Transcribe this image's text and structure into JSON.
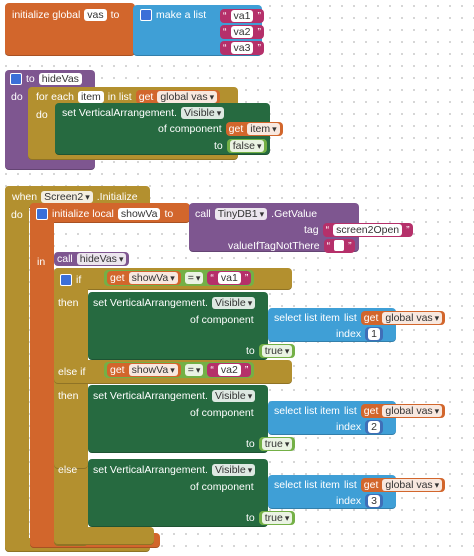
{
  "glyphs": {
    "dropdown": "▾",
    "quote_open": "“",
    "quote_close": "”"
  },
  "global_var": {
    "label": "initialize global",
    "name": "vas",
    "to": "to",
    "value": {
      "label": "make a list",
      "items": [
        "va1",
        "va2",
        "va3"
      ]
    }
  },
  "procedure": {
    "to": "to",
    "name": "hideVas",
    "do": "do",
    "body": {
      "label": "for each",
      "var": "item",
      "in_list": "in list",
      "list": {
        "get": "get",
        "name": "global vas"
      },
      "do": "do",
      "body": {
        "set": "set VerticalArrangement.",
        "property": "Visible",
        "of_component": "of component",
        "component": {
          "get": "get",
          "name": "item"
        },
        "to": "to",
        "value": "false"
      }
    }
  },
  "event": {
    "when": "when",
    "component": "Screen2",
    "event": ".Initialize",
    "do": "do",
    "body": {
      "label": "initialize local",
      "name": "showVa",
      "to": "to",
      "value": {
        "call": "call",
        "component": "TinyDB1",
        "method": ".GetValue",
        "tag": "tag",
        "tag_value": "screen2Open",
        "default": "valueIfTagNotThere"
      },
      "in": "in",
      "body": [
        {
          "call": "call",
          "name": "hideVas"
        },
        {
          "branches": [
            {
              "keyword": "if",
              "test": {
                "get": "get",
                "var": "showVa",
                "op": "=",
                "value": "va1"
              },
              "then": "then",
              "action": {
                "set": "set VerticalArrangement.",
                "property": "Visible",
                "of_component": "of component",
                "component": {
                  "label": "select list item",
                  "list_label": "list",
                  "list": {
                    "get": "get",
                    "name": "global vas"
                  },
                  "index_label": "index",
                  "index": 1
                },
                "to": "to",
                "value": "true"
              }
            },
            {
              "keyword": "else if",
              "test": {
                "get": "get",
                "var": "showVa",
                "op": "=",
                "value": "va2"
              },
              "then": "then",
              "action": {
                "set": "set VerticalArrangement.",
                "property": "Visible",
                "of_component": "of component",
                "component": {
                  "label": "select list item",
                  "list_label": "list",
                  "list": {
                    "get": "get",
                    "name": "global vas"
                  },
                  "index_label": "index",
                  "index": 2
                },
                "to": "to",
                "value": "true"
              }
            },
            {
              "keyword": "else",
              "action": {
                "set": "set VerticalArrangement.",
                "property": "Visible",
                "of_component": "of component",
                "component": {
                  "label": "select list item",
                  "list_label": "list",
                  "list": {
                    "get": "get",
                    "name": "global vas"
                  },
                  "index_label": "index",
                  "index": 3
                },
                "to": "to",
                "value": "true"
              }
            }
          ]
        }
      ]
    }
  }
}
